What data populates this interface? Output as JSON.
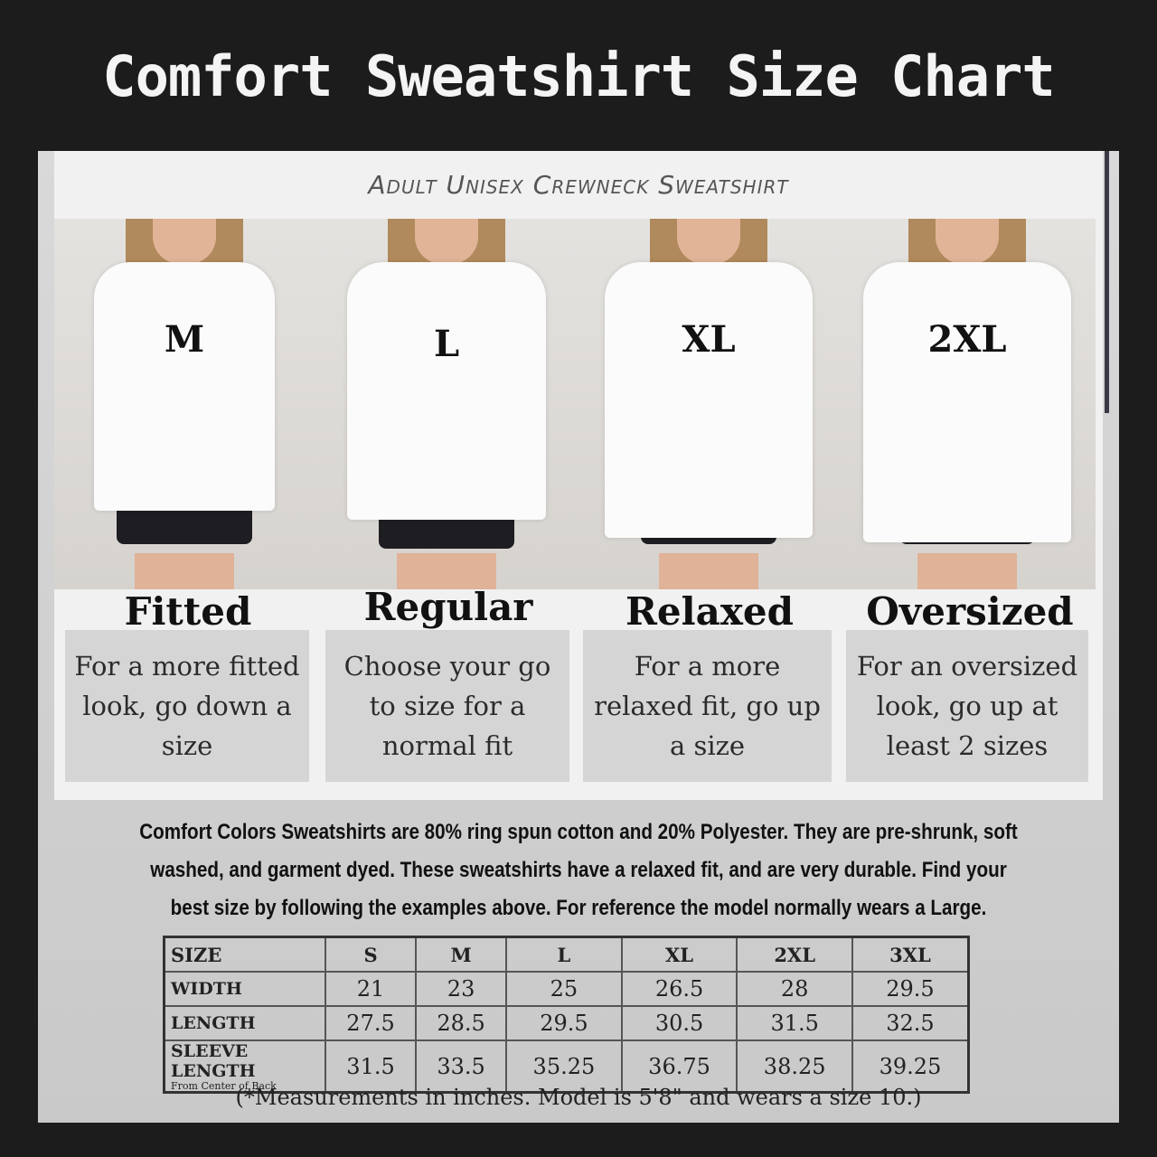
{
  "title": "Comfort Sweatshirt Size Chart",
  "subtitle": "Adult Unisex Crewneck Sweatshirt",
  "fits": [
    {
      "size": "M",
      "name": "Fitted",
      "description": "For a more fitted look, go down a size"
    },
    {
      "size": "L",
      "name": "Regular",
      "description": "Choose your go to size for a normal fit"
    },
    {
      "size": "XL",
      "name": "Relaxed",
      "description": "For a more relaxed fit, go up a size"
    },
    {
      "size": "2XL",
      "name": "Oversized",
      "description": "For an oversized look, go up at least 2 sizes"
    }
  ],
  "info_text": "Comfort Colors Sweatshirts are 80% ring spun cotton and 20% Polyester. They are pre-shrunk, soft washed, and garment dyed. These sweatshirts have a relaxed fit, and are very durable. Find your best size by following the examples above. For reference the model normally wears a Large.",
  "table": {
    "header": [
      "SIZE",
      "S",
      "M",
      "L",
      "XL",
      "2XL",
      "3XL"
    ],
    "rows": [
      {
        "label": "WIDTH",
        "sub": "",
        "values": [
          "21",
          "23",
          "25",
          "26.5",
          "28",
          "29.5"
        ]
      },
      {
        "label": "LENGTH",
        "sub": "",
        "values": [
          "27.5",
          "28.5",
          "29.5",
          "30.5",
          "31.5",
          "32.5"
        ]
      },
      {
        "label": "SLEEVE LENGTH",
        "sub": "From Center of Back",
        "values": [
          "31.5",
          "33.5",
          "35.25",
          "36.75",
          "38.25",
          "39.25"
        ]
      }
    ]
  },
  "footnote": "(*Measurements in inches. Model is 5'8\" and wears a size 10.)"
}
